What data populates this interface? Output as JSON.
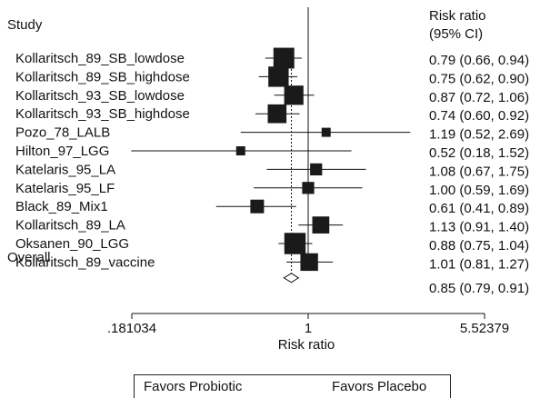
{
  "chart_data": {
    "type": "forest",
    "header": {
      "study": "Study",
      "effect_line1": "Risk ratio",
      "effect_line2": "(95% CI)"
    },
    "studies": [
      {
        "label": "Kollaritsch_89_SB_lowdose",
        "rr": 0.79,
        "lo": 0.66,
        "hi": 0.94,
        "ci_text": "0.79 (0.66, 0.94)",
        "weight": 21
      },
      {
        "label": "Kollaritsch_89_SB_highdose",
        "rr": 0.75,
        "lo": 0.62,
        "hi": 0.9,
        "ci_text": "0.75 (0.62, 0.90)",
        "weight": 20
      },
      {
        "label": "Kollaritsch_93_SB_lowdose",
        "rr": 0.87,
        "lo": 0.72,
        "hi": 1.06,
        "ci_text": "0.87 (0.72, 1.06)",
        "weight": 18
      },
      {
        "label": "Kollaritsch_93_SB_highdose",
        "rr": 0.74,
        "lo": 0.6,
        "hi": 0.92,
        "ci_text": "0.74 (0.60, 0.92)",
        "weight": 17
      },
      {
        "label": "Pozo_78_LALB",
        "rr": 1.19,
        "lo": 0.52,
        "hi": 2.69,
        "ci_text": "1.19 (0.52, 2.69)",
        "weight": 4
      },
      {
        "label": "Hilton_97_LGG",
        "rr": 0.52,
        "lo": 0.18,
        "hi": 1.52,
        "ci_text": "0.52 (0.18, 1.52)",
        "weight": 4
      },
      {
        "label": "Katelaris_95_LA",
        "rr": 1.08,
        "lo": 0.67,
        "hi": 1.75,
        "ci_text": "1.08 (0.67, 1.75)",
        "weight": 7
      },
      {
        "label": "Katelaris_95_LF",
        "rr": 1.0,
        "lo": 0.59,
        "hi": 1.69,
        "ci_text": "1.00 (0.59, 1.69)",
        "weight": 7
      },
      {
        "label": "Black_89_Mix1",
        "rr": 0.61,
        "lo": 0.41,
        "hi": 0.89,
        "ci_text": "0.61 (0.41, 0.89)",
        "weight": 9
      },
      {
        "label": "Kollaritsch_89_LA",
        "rr": 1.13,
        "lo": 0.91,
        "hi": 1.4,
        "ci_text": "1.13 (0.91, 1.40)",
        "weight": 14
      },
      {
        "label": "Oksanen_90_LGG",
        "rr": 0.88,
        "lo": 0.75,
        "hi": 1.04,
        "ci_text": "0.88 (0.75, 1.04)",
        "weight": 22
      },
      {
        "label": "Kollaritsch_89_vaccine",
        "rr": 1.01,
        "lo": 0.81,
        "hi": 1.27,
        "ci_text": "1.01 (0.81, 1.27)",
        "weight": 15
      }
    ],
    "overall": {
      "label": "Overall",
      "rr": 0.85,
      "lo": 0.79,
      "hi": 0.91,
      "ci_text": "0.85 (0.79, 0.91)"
    },
    "x_axis": {
      "scale": "log",
      "xlim": [
        0.181034,
        5.52379
      ],
      "ticks": [
        0.181034,
        1,
        5.52379
      ],
      "tick_labels": [
        ".181034",
        "1",
        "5.52379"
      ],
      "xlabel": "Risk ratio",
      "null_line": 1
    },
    "favors": {
      "left": "Favors Probiotic",
      "right": "Favors Placebo"
    }
  }
}
